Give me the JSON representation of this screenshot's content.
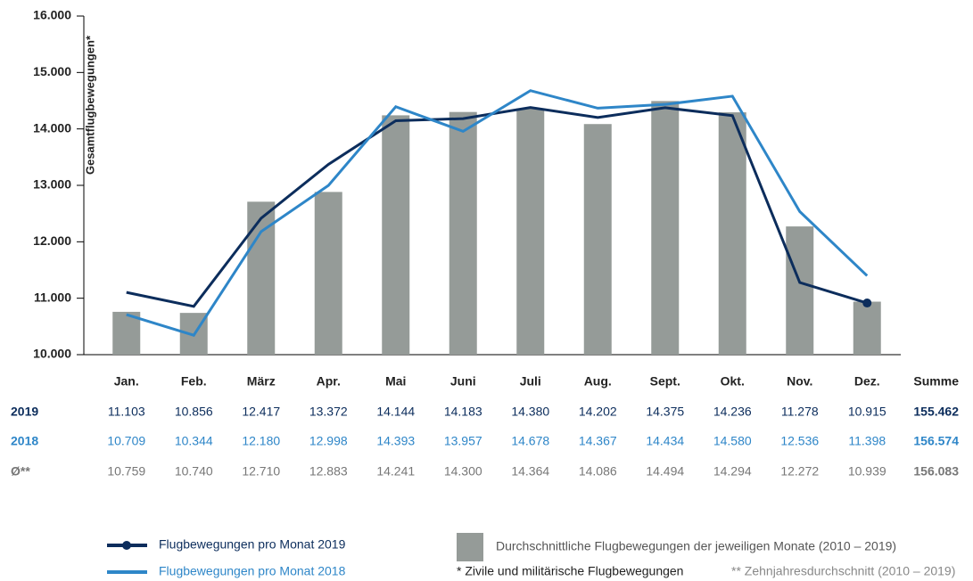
{
  "chart_data": {
    "type": "bar",
    "y_label": "Gesamtflugbewegungen*",
    "categories": [
      "Jan.",
      "Feb.",
      "März",
      "Apr.",
      "Mai",
      "Juni",
      "Juli",
      "Aug.",
      "Sept.",
      "Okt.",
      "Nov.",
      "Dez."
    ],
    "sum_header": "Summe",
    "ylim": [
      10000,
      16000
    ],
    "yticks": [
      {
        "value": 10000,
        "label": "10.000"
      },
      {
        "value": 11000,
        "label": "11.000"
      },
      {
        "value": 12000,
        "label": "12.000"
      },
      {
        "value": 13000,
        "label": "13.000"
      },
      {
        "value": 14000,
        "label": "14.000"
      },
      {
        "value": 15000,
        "label": "15.000"
      },
      {
        "value": 16000,
        "label": "16.000"
      }
    ],
    "series": [
      {
        "name": "Flugbewegungen pro Monat 2019",
        "row_label": "2019",
        "type": "line",
        "color": "#0c2d5c",
        "end_marker": true,
        "values": [
          11103,
          10856,
          12417,
          13372,
          14144,
          14183,
          14380,
          14202,
          14375,
          14236,
          11278,
          10915
        ],
        "value_labels": [
          "11.103",
          "10.856",
          "12.417",
          "13.372",
          "14.144",
          "14.183",
          "14.380",
          "14.202",
          "14.375",
          "14.236",
          "11.278",
          "10.915"
        ],
        "sum_label": "155.462"
      },
      {
        "name": "Flugbewegungen pro Monat 2018",
        "row_label": "2018",
        "type": "line",
        "color": "#2e86c8",
        "values": [
          10709,
          10344,
          12180,
          12998,
          14393,
          13957,
          14678,
          14367,
          14434,
          14580,
          12536,
          11398
        ],
        "value_labels": [
          "10.709",
          "10.344",
          "12.180",
          "12.998",
          "14.393",
          "13.957",
          "14.678",
          "14.367",
          "14.434",
          "14.580",
          "12.536",
          "11.398"
        ],
        "sum_label": "156.574"
      },
      {
        "name": "Durchschnittliche Flugbewegungen der jeweiligen Monate (2010 – 2019)",
        "row_label": "Ø**",
        "type": "bar",
        "color": "#959b98",
        "values": [
          10759,
          10740,
          12710,
          12883,
          14241,
          14300,
          14364,
          14086,
          14494,
          14294,
          12272,
          10939
        ],
        "value_labels": [
          "10.759",
          "10.740",
          "12.710",
          "12.883",
          "14.241",
          "14.300",
          "14.364",
          "14.086",
          "14.494",
          "14.294",
          "12.272",
          "10.939"
        ],
        "sum_label": "156.083"
      }
    ],
    "footnotes": [
      "* Zivile und militärische Flugbewegungen",
      "** Zehnjahresdurchschnitt (2010 – 2019)"
    ]
  }
}
